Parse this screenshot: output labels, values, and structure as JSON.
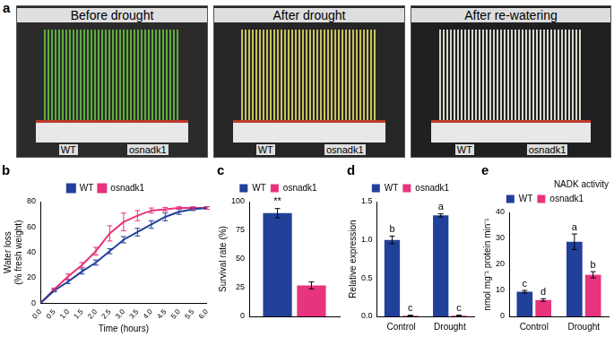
{
  "panel_a": {
    "label": "a",
    "photos": [
      {
        "title": "Before drought",
        "labels": [
          "WT",
          "osnadk1"
        ]
      },
      {
        "title": "After drought",
        "labels": [
          "WT",
          "osnadk1"
        ]
      },
      {
        "title": "After re-watering",
        "labels": [
          "WT",
          "osnadk1"
        ]
      }
    ]
  },
  "chart_data": [
    {
      "type": "line",
      "title": "b",
      "x_label": "Time (hours)",
      "y_label": [
        "Water loss",
        "(% fresh weight)"
      ],
      "x": [
        0,
        0.5,
        1,
        1.5,
        2,
        2.5,
        3,
        3.5,
        4,
        4.5,
        5,
        5.5,
        6
      ],
      "series": [
        {
          "name": "WT",
          "color": "#21409a",
          "values": [
            0,
            10,
            17,
            25,
            32,
            41,
            50,
            56,
            62,
            68,
            72,
            74,
            75
          ],
          "errors": [
            0,
            1,
            1.5,
            2,
            2,
            2,
            2.5,
            3,
            3,
            3,
            2,
            1,
            1
          ]
        },
        {
          "name": "osnadk1",
          "color": "#e8347d",
          "values": [
            0,
            11,
            21,
            30,
            41,
            55,
            64,
            69,
            73,
            74,
            75,
            75,
            75
          ],
          "errors": [
            0,
            1,
            2,
            2,
            3,
            6,
            7,
            4,
            2,
            1.5,
            1,
            1,
            1
          ]
        }
      ],
      "xlim": [
        0,
        6
      ],
      "xticks": [
        {
          "value": 0,
          "label": "0.0"
        },
        {
          "value": 0.5,
          "label": "0.5"
        },
        {
          "value": 1,
          "label": "1.0"
        },
        {
          "value": 1.5,
          "label": "1.5"
        },
        {
          "value": 2,
          "label": "2.0"
        },
        {
          "value": 2.5,
          "label": "2.5"
        },
        {
          "value": 3,
          "label": "3.0"
        },
        {
          "value": 3.5,
          "label": "3.5"
        },
        {
          "value": 4,
          "label": "4.0"
        },
        {
          "value": 4.5,
          "label": "4.5"
        },
        {
          "value": 5,
          "label": "5.0"
        },
        {
          "value": 5.5,
          "label": "5.5"
        },
        {
          "value": 6,
          "label": "6.0"
        }
      ],
      "ylim": [
        0,
        80
      ],
      "yticks": [
        0,
        20,
        40,
        60,
        80
      ],
      "grid": false,
      "legend": "top"
    },
    {
      "type": "bar",
      "title": "c",
      "y_label": "Survival rate (%)",
      "categories": [
        null
      ],
      "series": [
        {
          "name": "WT",
          "color": "#21409a",
          "values": [
            90
          ],
          "errors": [
            4
          ],
          "letters": [
            "**"
          ]
        },
        {
          "name": "osnadk1",
          "color": "#e8347d",
          "values": [
            27
          ],
          "errors": [
            3
          ],
          "letters": [
            null
          ]
        }
      ],
      "ylim": [
        0,
        100
      ],
      "yticks": [
        0,
        25,
        50,
        75,
        100
      ],
      "grid": false,
      "legend": "top"
    },
    {
      "type": "bar",
      "title": "d",
      "y_label": "Relative expression",
      "categories": [
        "Control",
        "Drought"
      ],
      "series": [
        {
          "name": "WT",
          "color": "#21409a",
          "values": [
            1.0,
            1.32
          ],
          "errors": [
            0.05,
            0.02
          ],
          "letters": [
            "b",
            "a"
          ]
        },
        {
          "name": "osnadk1",
          "color": "#e8347d",
          "values": [
            0.01,
            0.01
          ],
          "errors": [
            0.005,
            0.005
          ],
          "letters": [
            "c",
            "c"
          ]
        }
      ],
      "ylim": [
        0,
        1.5
      ],
      "yticks": [
        {
          "value": 0,
          "label": "0.0"
        },
        {
          "value": 0.5,
          "label": "0.5"
        },
        {
          "value": 1,
          "label": "1.0"
        },
        {
          "value": 1.5,
          "label": "1.5"
        }
      ],
      "grid": false,
      "legend": "top"
    },
    {
      "type": "bar",
      "title": "e",
      "annotations": [
        "NADK activity"
      ],
      "y_label": "nmol mg⁻¹ protein min⁻¹",
      "categories": [
        "Control",
        "Drought"
      ],
      "series": [
        {
          "name": "WT",
          "color": "#21409a",
          "values": [
            9.5,
            28.7
          ],
          "errors": [
            0.5,
            3
          ],
          "letters": [
            "c",
            "a"
          ]
        },
        {
          "name": "osnadk1",
          "color": "#e8347d",
          "values": [
            6.3,
            16
          ],
          "errors": [
            0.5,
            1.2
          ],
          "letters": [
            "d",
            "b"
          ]
        }
      ],
      "ylim": [
        0,
        40
      ],
      "yticks": [
        0,
        10,
        20,
        30,
        40
      ],
      "grid": false,
      "legend": "top"
    }
  ]
}
